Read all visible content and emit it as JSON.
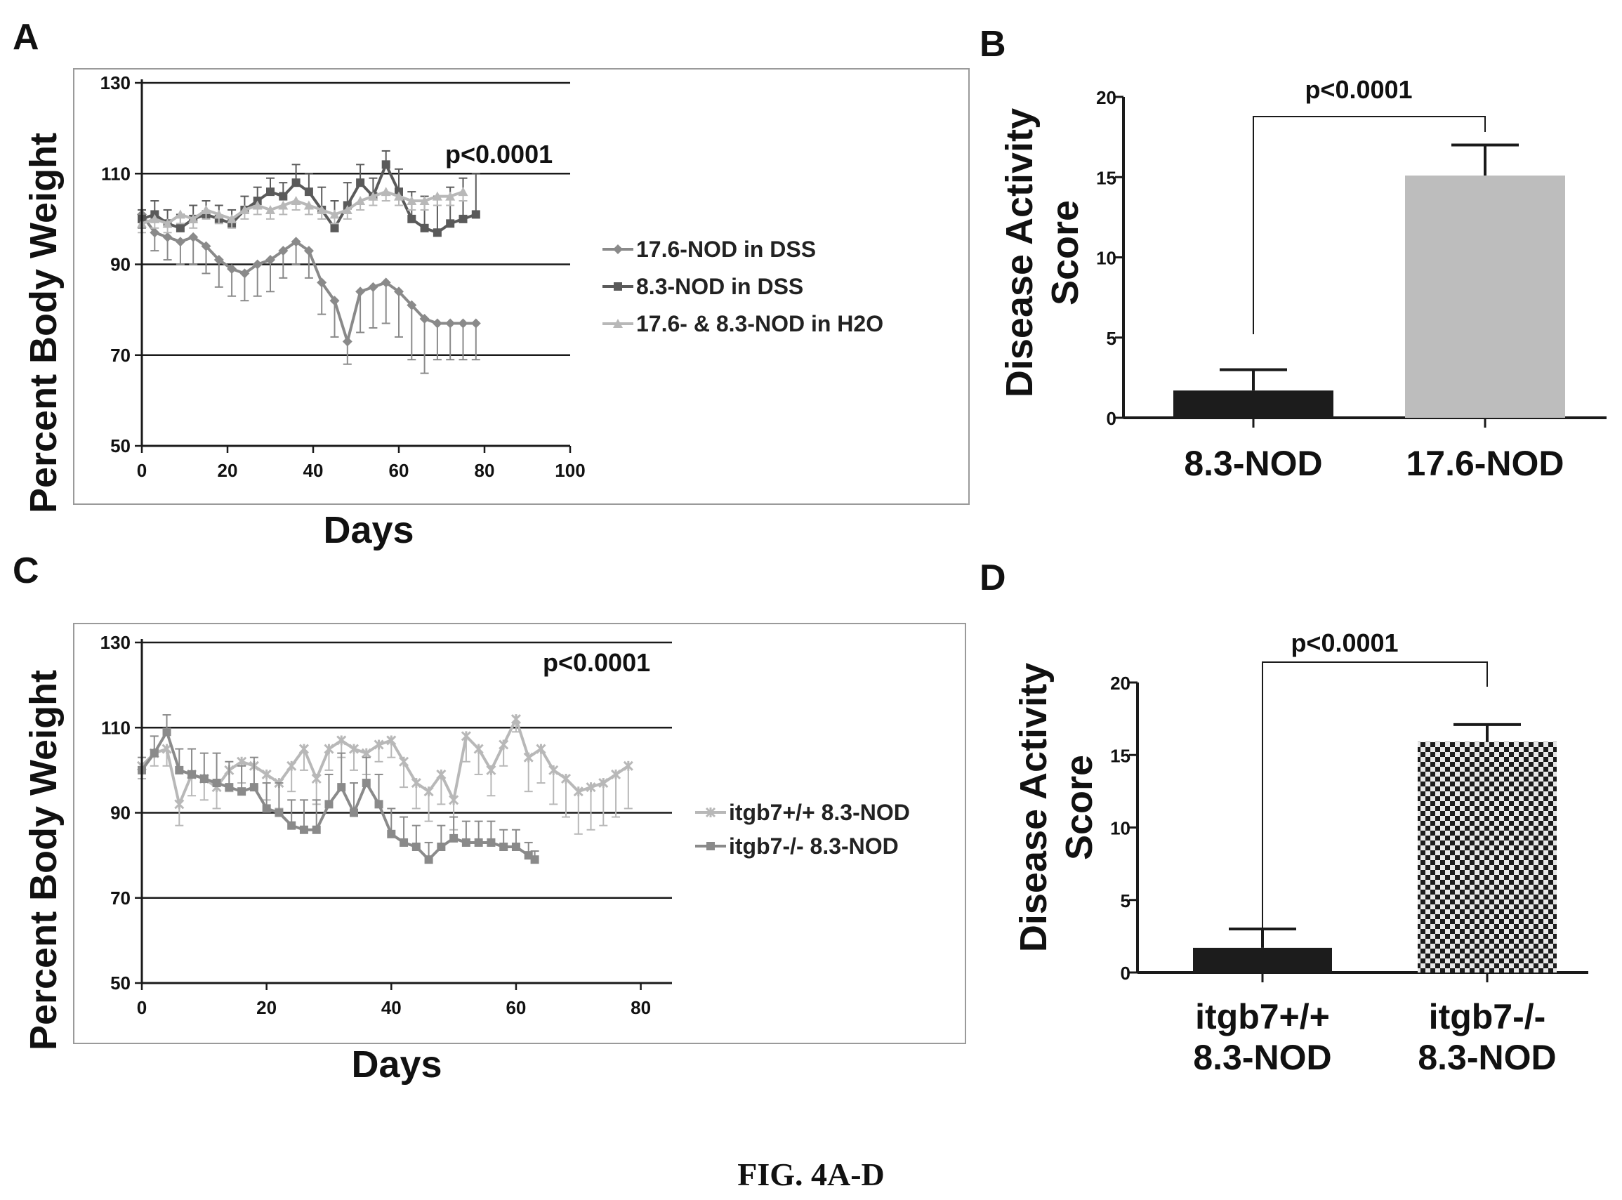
{
  "panels": {
    "a": "A",
    "b": "B",
    "c": "C",
    "d": "D"
  },
  "caption": "FIG. 4A-D",
  "colors": {
    "dark": "#1a1a1a",
    "series_dark": "#5a5a5a",
    "series_mid": "#8a8a8a",
    "series_light": "#b8b8b8",
    "bar_dark": "#1c1c1c",
    "bar_light": "#bdbdbd"
  },
  "chart_data": [
    {
      "type": "line",
      "panel": "A",
      "ylabel": "Percent Body Weight",
      "xlabel": "Days",
      "annotation": "p<0.0001",
      "xlim": [
        0,
        100
      ],
      "ylim": [
        50,
        130
      ],
      "xticks": [
        "0",
        "20",
        "40",
        "60",
        "80",
        "100"
      ],
      "yticks": [
        "50",
        "70",
        "90",
        "110",
        "130"
      ],
      "grid": "horizontal",
      "legend_position": "right",
      "series": [
        {
          "name": "17.6-NOD in DSS",
          "marker": "diamond",
          "x": [
            0,
            3,
            6,
            9,
            12,
            15,
            18,
            21,
            24,
            27,
            30,
            33,
            36,
            39,
            42,
            45,
            48,
            51,
            54,
            57,
            60,
            63,
            66,
            69,
            72,
            75,
            78
          ],
          "y": [
            101,
            97,
            96,
            95,
            96,
            94,
            91,
            89,
            88,
            90,
            91,
            93,
            95,
            93,
            86,
            82,
            73,
            84,
            85,
            86,
            84,
            81,
            78,
            77,
            77,
            77,
            77
          ],
          "err": [
            3,
            4,
            5,
            5,
            6,
            6,
            6,
            6,
            6,
            7,
            7,
            6,
            5,
            6,
            7,
            8,
            5,
            9,
            9,
            9,
            10,
            12,
            12,
            8,
            8,
            8,
            8
          ]
        },
        {
          "name": "8.3-NOD in DSS",
          "marker": "square",
          "x": [
            0,
            3,
            6,
            9,
            12,
            15,
            18,
            21,
            24,
            27,
            30,
            33,
            36,
            39,
            42,
            45,
            48,
            51,
            54,
            57,
            60,
            63,
            66,
            69,
            72,
            75,
            78
          ],
          "y": [
            100,
            101,
            99,
            98,
            100,
            101,
            100,
            99,
            102,
            104,
            106,
            105,
            108,
            106,
            102,
            98,
            103,
            108,
            105,
            112,
            106,
            100,
            98,
            97,
            99,
            100,
            101
          ],
          "err": [
            2,
            3,
            3,
            3,
            3,
            3,
            3,
            3,
            3,
            3,
            3,
            3,
            4,
            4,
            5,
            6,
            5,
            4,
            4,
            3,
            5,
            6,
            7,
            8,
            8,
            9,
            9
          ]
        },
        {
          "name": "17.6- & 8.3-NOD in H2O",
          "marker": "triangle",
          "x": [
            0,
            3,
            6,
            9,
            12,
            15,
            18,
            21,
            24,
            27,
            30,
            33,
            36,
            39,
            42,
            45,
            48,
            51,
            54,
            57,
            60,
            63,
            66,
            69,
            72,
            75
          ],
          "y": [
            99,
            100,
            99,
            101,
            100,
            102,
            101,
            100,
            102,
            103,
            102,
            103,
            104,
            103,
            102,
            101,
            102,
            104,
            105,
            106,
            105,
            104,
            104,
            105,
            105,
            106
          ],
          "err": [
            2,
            2,
            2,
            2,
            2,
            2,
            2,
            2,
            2,
            2,
            2,
            2,
            2,
            2,
            2,
            2,
            2,
            2,
            2,
            2,
            2,
            2,
            2,
            2,
            2,
            2
          ]
        }
      ]
    },
    {
      "type": "bar",
      "panel": "B",
      "ylabel": "Disease Activity Score",
      "annotation": "p<0.0001",
      "categories": [
        "8.3-NOD",
        "17.6-NOD"
      ],
      "values": [
        1.7,
        15.1
      ],
      "errors": [
        1.3,
        1.9
      ],
      "ylim": [
        0,
        20
      ],
      "yticks": [
        "0",
        "5",
        "10",
        "15",
        "20"
      ],
      "fills": [
        "dark",
        "light"
      ]
    },
    {
      "type": "line",
      "panel": "C",
      "ylabel": "Percent Body Weight",
      "xlabel": "Days",
      "annotation": "p<0.0001",
      "xlim": [
        0,
        85
      ],
      "ylim": [
        50,
        130
      ],
      "xticks": [
        "0",
        "20",
        "40",
        "60",
        "80"
      ],
      "yticks": [
        "50",
        "70",
        "90",
        "110",
        "130"
      ],
      "grid": "horizontal",
      "legend_position": "right",
      "series": [
        {
          "name": "itgb7+/+ 8.3-NOD",
          "marker": "star",
          "x": [
            0,
            2,
            4,
            6,
            8,
            10,
            12,
            14,
            16,
            18,
            20,
            22,
            24,
            26,
            28,
            30,
            32,
            34,
            36,
            38,
            40,
            42,
            44,
            46,
            48,
            50,
            52,
            54,
            56,
            58,
            60,
            62,
            64,
            66,
            68,
            70,
            72,
            74,
            76,
            78
          ],
          "y": [
            101,
            104,
            105,
            92,
            99,
            98,
            96,
            100,
            102,
            101,
            99,
            97,
            101,
            105,
            98,
            105,
            107,
            105,
            104,
            106,
            107,
            102,
            97,
            95,
            99,
            93,
            108,
            105,
            100,
            106,
            112,
            103,
            105,
            100,
            98,
            95,
            96,
            97,
            99,
            101
          ],
          "err": [
            3,
            3,
            4,
            5,
            5,
            5,
            5,
            5,
            5,
            5,
            6,
            6,
            6,
            5,
            6,
            5,
            4,
            5,
            5,
            4,
            4,
            6,
            6,
            7,
            7,
            7,
            6,
            6,
            6,
            5,
            3,
            8,
            8,
            8,
            9,
            10,
            10,
            10,
            10,
            10
          ]
        },
        {
          "name": "itgb7-/- 8.3-NOD",
          "marker": "square",
          "x": [
            0,
            2,
            4,
            6,
            8,
            10,
            12,
            14,
            16,
            18,
            20,
            22,
            24,
            26,
            28,
            30,
            32,
            34,
            36,
            38,
            40,
            42,
            44,
            46,
            48,
            50,
            52,
            54,
            56,
            58,
            60,
            62,
            63
          ],
          "y": [
            100,
            104,
            109,
            100,
            99,
            98,
            97,
            96,
            95,
            96,
            91,
            90,
            87,
            86,
            86,
            92,
            96,
            90,
            97,
            92,
            85,
            83,
            82,
            79,
            82,
            84,
            83,
            83,
            83,
            82,
            82,
            80,
            79
          ],
          "err": [
            3,
            4,
            4,
            5,
            6,
            6,
            7,
            6,
            6,
            7,
            6,
            7,
            6,
            7,
            7,
            7,
            8,
            7,
            6,
            7,
            6,
            6,
            5,
            4,
            5,
            5,
            5,
            5,
            5,
            4,
            4,
            3,
            2
          ]
        }
      ]
    },
    {
      "type": "bar",
      "panel": "D",
      "ylabel": "Disease Activity Score",
      "annotation": "p<0.0001",
      "categories": [
        "itgb7+/+\n8.3-NOD",
        "itgb7-/-\n8.3-NOD"
      ],
      "category_lines": [
        [
          "itgb7+/+",
          "8.3-NOD"
        ],
        [
          "itgb7-/-",
          "8.3-NOD"
        ]
      ],
      "values": [
        1.7,
        15.9
      ],
      "errors": [
        1.3,
        1.2
      ],
      "ylim": [
        0,
        20
      ],
      "yticks": [
        "0",
        "5",
        "10",
        "15",
        "20"
      ],
      "fills": [
        "dark",
        "checker"
      ]
    }
  ]
}
